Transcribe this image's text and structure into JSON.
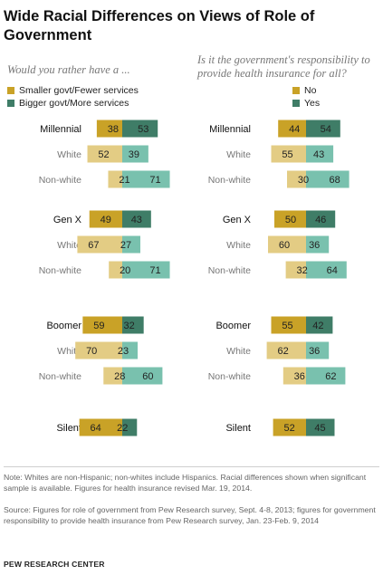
{
  "title": "Wide Racial Differences on Views of Role of Government",
  "colors": {
    "dark_gold": "#c9a227",
    "light_gold": "#e3cc84",
    "dark_teal": "#3f7d67",
    "light_teal": "#79c1ae",
    "label_total": "#111111",
    "label_sub": "#777777"
  },
  "chart_data": [
    {
      "type": "bar",
      "subtitle": "Would you rather have a ...",
      "legend": [
        "Smaller govt/Fewer services",
        "Bigger govt/More services"
      ],
      "groups": [
        {
          "rows": [
            {
              "label": "Millennial",
              "kind": "total",
              "values": [
                38,
                53
              ]
            },
            {
              "label": "White",
              "kind": "sub",
              "values": [
                52,
                39
              ]
            },
            {
              "label": "Non-white",
              "kind": "sub",
              "values": [
                21,
                71
              ]
            }
          ]
        },
        {
          "rows": [
            {
              "label": "Gen X",
              "kind": "total",
              "values": [
                49,
                43
              ]
            },
            {
              "label": "White",
              "kind": "sub",
              "values": [
                67,
                27
              ]
            },
            {
              "label": "Non-white",
              "kind": "sub",
              "values": [
                20,
                71
              ]
            }
          ]
        },
        {
          "rows": [
            {
              "label": "Boomer",
              "kind": "total",
              "values": [
                59,
                32
              ]
            },
            {
              "label": "White",
              "kind": "sub",
              "values": [
                70,
                23
              ]
            },
            {
              "label": "Non-white",
              "kind": "sub",
              "values": [
                28,
                60
              ]
            }
          ]
        },
        {
          "rows": [
            {
              "label": "Silent",
              "kind": "total",
              "values": [
                64,
                22
              ]
            }
          ]
        }
      ]
    },
    {
      "type": "bar",
      "subtitle": "Is it the government's responsibility to provide health insurance for all?",
      "legend": [
        "No",
        "Yes"
      ],
      "groups": [
        {
          "rows": [
            {
              "label": "Millennial",
              "kind": "total",
              "values": [
                44,
                54
              ]
            },
            {
              "label": "White",
              "kind": "sub",
              "values": [
                55,
                43
              ]
            },
            {
              "label": "Non-white",
              "kind": "sub",
              "values": [
                30,
                68
              ]
            }
          ]
        },
        {
          "rows": [
            {
              "label": "Gen X",
              "kind": "total",
              "values": [
                50,
                46
              ]
            },
            {
              "label": "White",
              "kind": "sub",
              "values": [
                60,
                36
              ]
            },
            {
              "label": "Non-white",
              "kind": "sub",
              "values": [
                32,
                64
              ]
            }
          ]
        },
        {
          "rows": [
            {
              "label": "Boomer",
              "kind": "total",
              "values": [
                55,
                42
              ]
            },
            {
              "label": "White",
              "kind": "sub",
              "values": [
                62,
                36
              ]
            },
            {
              "label": "Non-white",
              "kind": "sub",
              "values": [
                36,
                62
              ]
            }
          ]
        },
        {
          "rows": [
            {
              "label": "Silent",
              "kind": "total",
              "values": [
                52,
                45
              ]
            }
          ]
        }
      ]
    }
  ],
  "note": "Note: Whites are non-Hispanic; non-whites include Hispanics. Racial differences shown when significant sample is available. Figures for health insurance revised Mar. 19, 2014.",
  "source": "Source: Figures for role of government from Pew Research survey, Sept. 4-8, 2013; figures for government responsibility to provide health insurance from Pew Research survey, Jan. 23-Feb. 9, 2014",
  "brand": "PEW RESEARCH CENTER"
}
